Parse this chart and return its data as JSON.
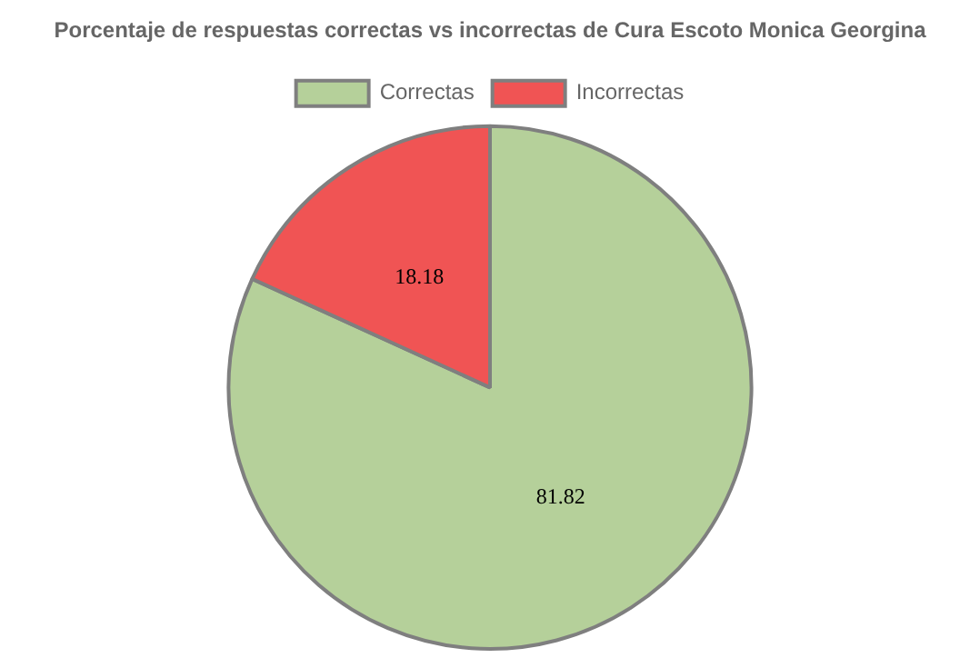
{
  "chart_data": {
    "type": "pie",
    "title": "Porcentaje de respuestas correctas vs incorrectas de Cura Escoto Monica Georgina",
    "categories": [
      "Correctas",
      "Incorrectas"
    ],
    "values": [
      81.82,
      18.18
    ],
    "colors": [
      "#b5d09a",
      "#f05454"
    ],
    "legend": "top",
    "data_labels": true
  }
}
